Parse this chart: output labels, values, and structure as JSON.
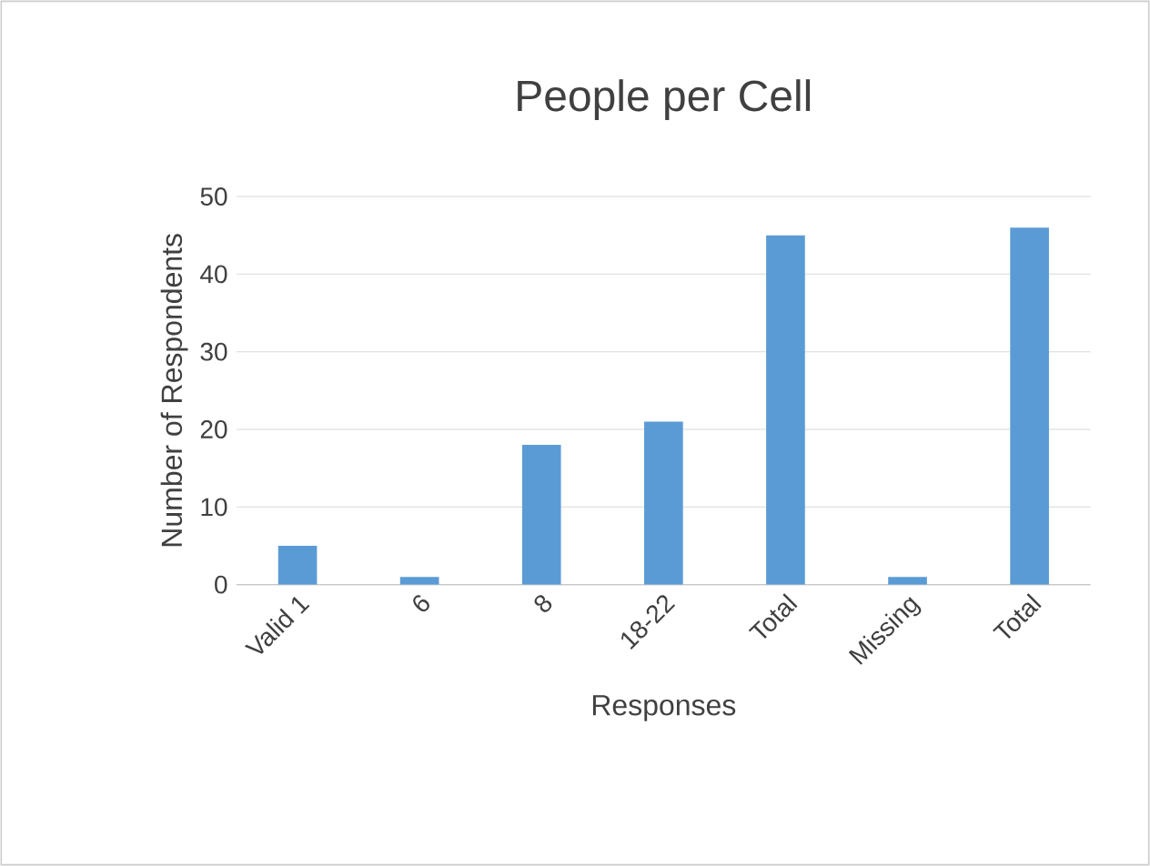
{
  "chart_data": {
    "type": "bar",
    "title": "People per Cell",
    "xlabel": "Responses",
    "ylabel": "Number of Respondents",
    "categories": [
      "Valid 1",
      "6",
      "8",
      "18-22",
      "Total",
      "Missing",
      "Total"
    ],
    "values": [
      5,
      1,
      18,
      21,
      45,
      1,
      46
    ],
    "color": "#5b9bd5",
    "ylim": [
      0,
      50
    ],
    "yticks": [
      0,
      10,
      20,
      30,
      40,
      50
    ],
    "grid": "y"
  }
}
